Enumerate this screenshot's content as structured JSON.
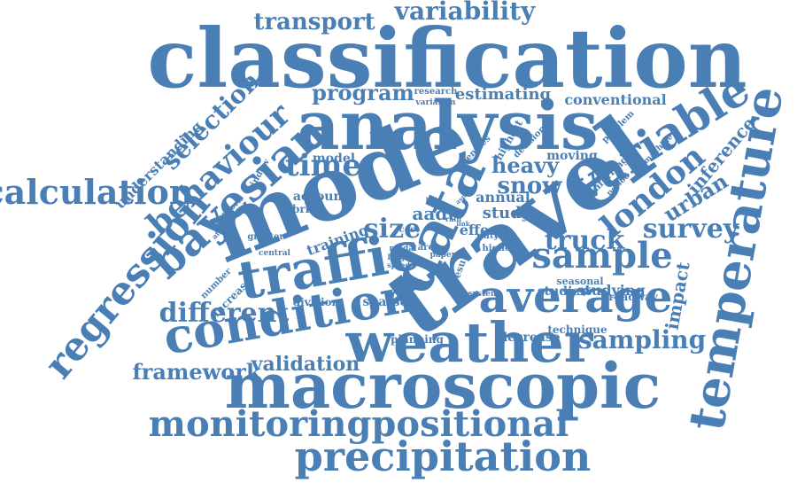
{
  "color": "#4a7fb5",
  "words": [
    {
      "text": "classification"
    },
    {
      "text": "analysis"
    },
    {
      "text": "mode"
    },
    {
      "text": "travel"
    },
    {
      "text": "weather"
    },
    {
      "text": "macroscopic"
    },
    {
      "text": "condition"
    },
    {
      "text": "traffic"
    },
    {
      "text": "bayesian"
    },
    {
      "text": "temperature"
    },
    {
      "text": "variable"
    },
    {
      "text": "average"
    },
    {
      "text": "precipitation"
    },
    {
      "text": "monitoringpositional"
    },
    {
      "text": "data"
    },
    {
      "text": "regression"
    },
    {
      "text": "behaviour"
    },
    {
      "text": "calculation"
    },
    {
      "text": "sample"
    },
    {
      "text": "london"
    },
    {
      "text": "survey"
    },
    {
      "text": "selection"
    },
    {
      "text": "transport"
    },
    {
      "text": "variability"
    },
    {
      "text": "time"
    },
    {
      "text": "different"
    },
    {
      "text": "sampling"
    },
    {
      "text": "framework"
    },
    {
      "text": "validation"
    },
    {
      "text": "size"
    },
    {
      "text": "truck"
    },
    {
      "text": "snow"
    },
    {
      "text": "program"
    },
    {
      "text": "estimating"
    },
    {
      "text": "conventional"
    },
    {
      "text": "urban"
    },
    {
      "text": "inference"
    },
    {
      "text": "impact"
    },
    {
      "text": "heavy"
    },
    {
      "text": "aadt"
    },
    {
      "text": "study"
    },
    {
      "text": "annual"
    },
    {
      "text": "effect"
    },
    {
      "text": "model"
    },
    {
      "text": "account"
    },
    {
      "text": "hybrid"
    },
    {
      "text": "training"
    },
    {
      "text": "moving"
    },
    {
      "text": "decrease"
    },
    {
      "text": "planning"
    },
    {
      "text": "sparse"
    },
    {
      "text": "division"
    },
    {
      "text": "studies"
    },
    {
      "text": "studying"
    },
    {
      "text": "roadway"
    },
    {
      "text": "technique"
    },
    {
      "text": "seasonal"
    },
    {
      "text": "window"
    },
    {
      "text": "understanding"
    },
    {
      "text": "highest"
    },
    {
      "text": "agencies"
    },
    {
      "text": "decision"
    },
    {
      "text": "research"
    },
    {
      "text": "variation"
    },
    {
      "text": "problem"
    },
    {
      "text": "machine"
    },
    {
      "text": "inferring"
    },
    {
      "text": "period"
    },
    {
      "text": "network"
    },
    {
      "text": "attempt"
    },
    {
      "text": "greater"
    },
    {
      "text": "central"
    },
    {
      "text": "number"
    },
    {
      "text": "increase"
    },
    {
      "text": "cost"
    },
    {
      "text": "modal"
    },
    {
      "text": "length"
    },
    {
      "text": "speed"
    },
    {
      "text": "area"
    },
    {
      "text": "paper"
    },
    {
      "text": "result"
    },
    {
      "text": "higher"
    },
    {
      "text": "duty"
    },
    {
      "text": "system"
    },
    {
      "text": "rain"
    },
    {
      "text": "link"
    },
    {
      "text": "aspect"
    },
    {
      "text": "light"
    },
    {
      "text": "state"
    }
  ]
}
